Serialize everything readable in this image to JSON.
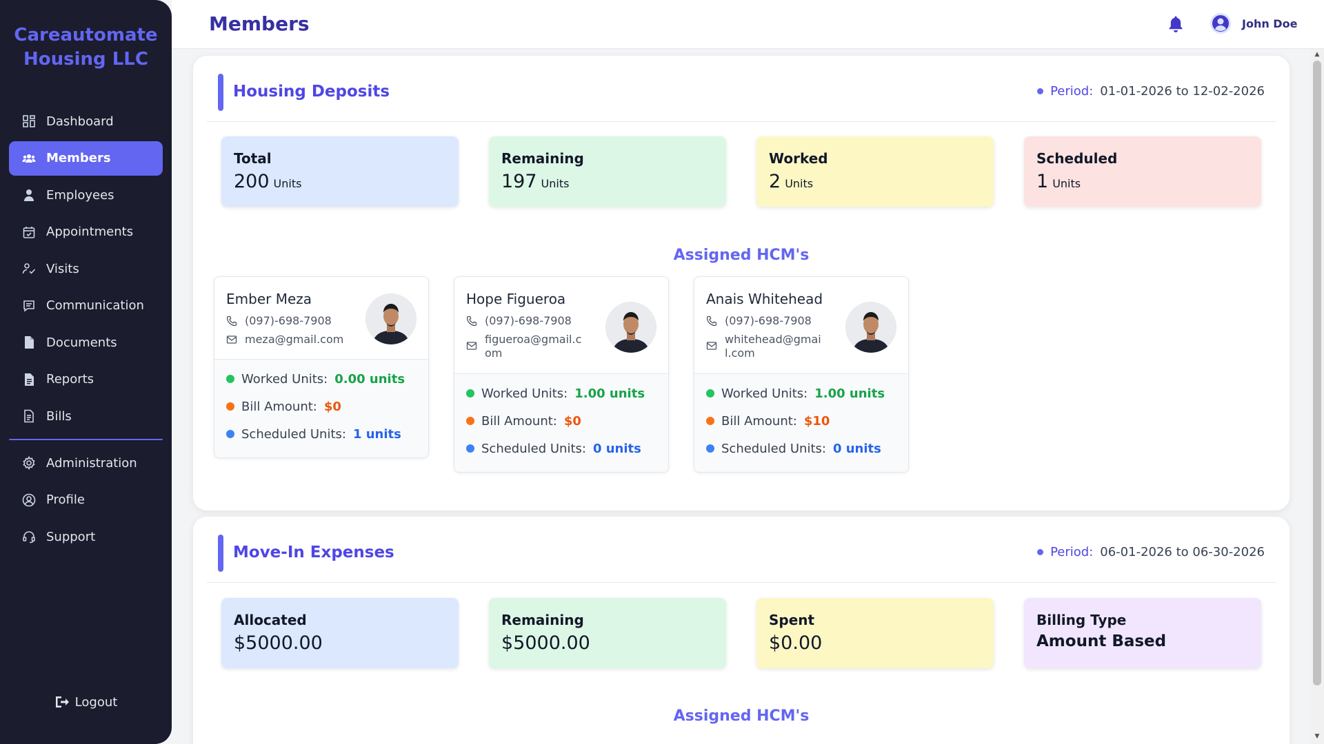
{
  "brand": {
    "line1": "Careautomate",
    "line2": "Housing LLC"
  },
  "sidebar": {
    "items": [
      {
        "label": "Dashboard",
        "icon": "dashboard-icon"
      },
      {
        "label": "Members",
        "icon": "members-icon",
        "active": true
      },
      {
        "label": "Employees",
        "icon": "employees-icon"
      },
      {
        "label": "Appointments",
        "icon": "calendar-icon"
      },
      {
        "label": "Visits",
        "icon": "visits-icon"
      },
      {
        "label": "Communication",
        "icon": "chat-icon"
      },
      {
        "label": "Documents",
        "icon": "document-icon"
      },
      {
        "label": "Reports",
        "icon": "report-icon"
      },
      {
        "label": "Bills",
        "icon": "bill-icon"
      },
      {
        "label": "Administration",
        "icon": "gear-icon"
      },
      {
        "label": "Profile",
        "icon": "profile-icon"
      },
      {
        "label": "Support",
        "icon": "headset-icon"
      }
    ],
    "logout": "Logout"
  },
  "header": {
    "title": "Members",
    "user_name": "John Doe"
  },
  "housing_deposits": {
    "title": "Housing Deposits",
    "period_label": "Period:",
    "period_value": "01-01-2026 to 12-02-2026",
    "stats": [
      {
        "label": "Total",
        "value": "200",
        "unit": "Units",
        "color": "#dbe8fd"
      },
      {
        "label": "Remaining",
        "value": "197",
        "unit": "Units",
        "color": "#dcf7e6"
      },
      {
        "label": "Worked",
        "value": "2",
        "unit": "Units",
        "color": "#fdf7c4"
      },
      {
        "label": "Scheduled",
        "value": "1",
        "unit": "Units",
        "color": "#fde2e2"
      }
    ],
    "assigned_title": "Assigned HCM's",
    "hcms": [
      {
        "name": "Ember Meza",
        "phone": "(097)-698-7908",
        "email": "meza@gmail.com",
        "worked_label": "Worked Units:",
        "worked": "0.00 units",
        "bill_label": "Bill Amount:",
        "bill": "$0",
        "scheduled_label": "Scheduled Units:",
        "scheduled": "1 units"
      },
      {
        "name": "Hope Figueroa",
        "phone": "(097)-698-7908",
        "email": "figueroa@gmail.com",
        "worked_label": "Worked Units:",
        "worked": "1.00 units",
        "bill_label": "Bill Amount:",
        "bill": "$0",
        "scheduled_label": "Scheduled Units:",
        "scheduled": "0 units"
      },
      {
        "name": "Anais Whitehead",
        "phone": "(097)-698-7908",
        "email": "whitehead@gmail.com",
        "worked_label": "Worked Units:",
        "worked": "1.00 units",
        "bill_label": "Bill Amount:",
        "bill": "$10",
        "scheduled_label": "Scheduled Units:",
        "scheduled": "0 units"
      }
    ]
  },
  "move_in_expenses": {
    "title": "Move-In Expenses",
    "period_label": "Period:",
    "period_value": "06-01-2026 to 06-30-2026",
    "stats": [
      {
        "label": "Allocated",
        "value": "$5000.00",
        "color": "#dbe8fd"
      },
      {
        "label": "Remaining",
        "value": "$5000.00",
        "color": "#dcf7e6"
      },
      {
        "label": "Spent",
        "value": "$0.00",
        "color": "#fdf7c4"
      },
      {
        "label": "Billing Type",
        "value": "Amount Based",
        "color": "#f1e6fd"
      }
    ],
    "assigned_title": "Assigned HCM's"
  }
}
